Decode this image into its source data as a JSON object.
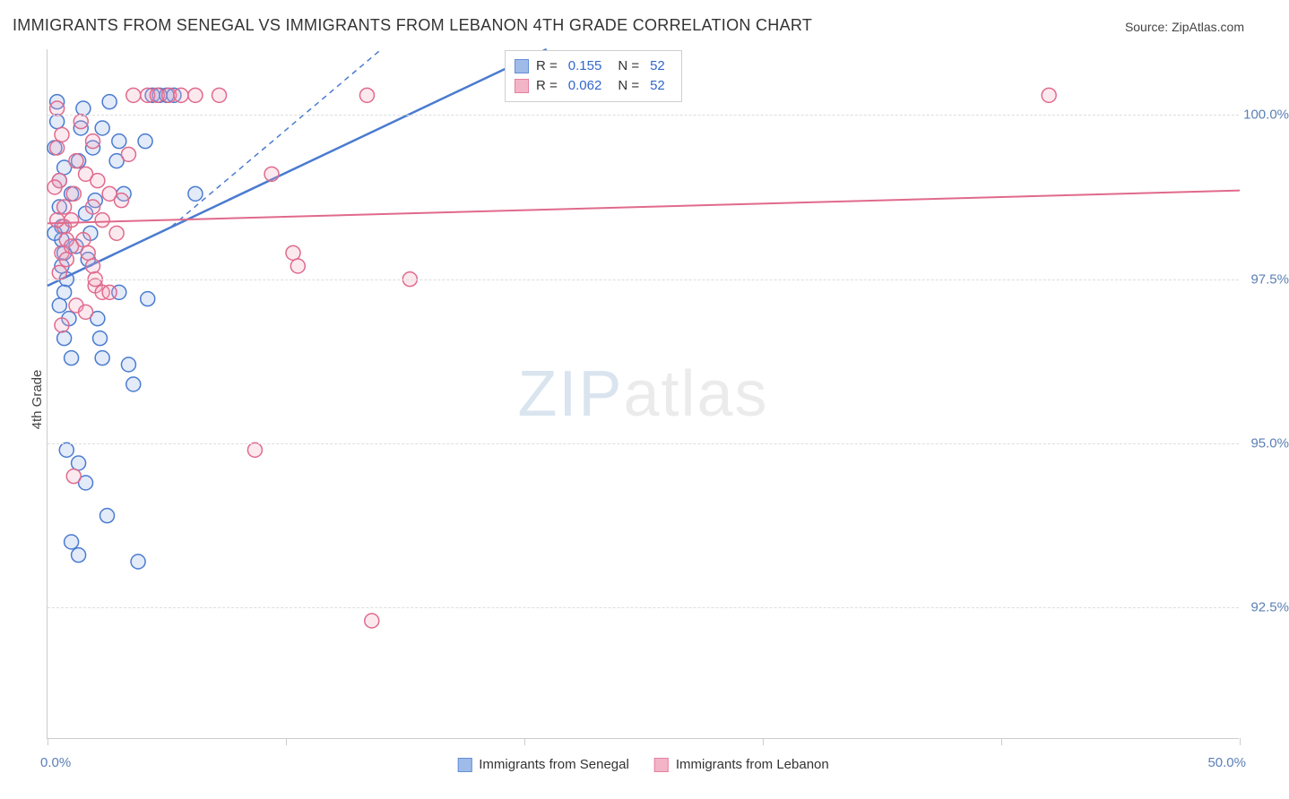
{
  "chart": {
    "type": "scatter",
    "title": "IMMIGRANTS FROM SENEGAL VS IMMIGRANTS FROM LEBANON 4TH GRADE CORRELATION CHART",
    "source_label": "Source: ZipAtlas.com",
    "ylabel": "4th Grade",
    "watermark_primary": "ZIP",
    "watermark_secondary": "atlas",
    "background_color": "#ffffff",
    "grid_color": "#dddddd",
    "axis_color": "#cccccc",
    "text_color": "#333333",
    "value_color": "#3366cc",
    "xlim": [
      0,
      50
    ],
    "ylim": [
      90.5,
      101
    ],
    "ytick_values": [
      92.5,
      95.0,
      97.5,
      100.0
    ],
    "ytick_labels": [
      "92.5%",
      "95.0%",
      "97.5%",
      "100.0%"
    ],
    "xtick_values": [
      0,
      10,
      20,
      30,
      40,
      50
    ],
    "xmin_label": "0.0%",
    "xmax_label": "50.0%",
    "marker_radius": 8,
    "marker_stroke_width": 1.5,
    "marker_fill_opacity": 0.25,
    "series": [
      {
        "id": "senegal",
        "label": "Immigrants from Senegal",
        "color_stroke": "#4a7bd0",
        "color_fill": "#8fb0e6",
        "legend_R": "0.155",
        "legend_N": "52",
        "trend_line": {
          "x1": 0,
          "y1": 97.4,
          "x2": 50,
          "y2": 106,
          "dash": false,
          "width": 2.5
        },
        "trend_line_dashed": {
          "x1": 5.2,
          "y1": 98.3,
          "x2": 14,
          "y2": 101,
          "dash": true,
          "width": 1.5
        },
        "points": [
          [
            0.4,
            100.2
          ],
          [
            0.5,
            99.0
          ],
          [
            0.5,
            98.6
          ],
          [
            0.6,
            98.3
          ],
          [
            0.6,
            98.1
          ],
          [
            0.7,
            97.9
          ],
          [
            0.6,
            97.7
          ],
          [
            0.8,
            97.5
          ],
          [
            0.7,
            97.3
          ],
          [
            0.5,
            97.1
          ],
          [
            0.9,
            96.9
          ],
          [
            0.7,
            96.6
          ],
          [
            1.0,
            96.3
          ],
          [
            1.2,
            98.0
          ],
          [
            1.0,
            98.8
          ],
          [
            1.3,
            99.3
          ],
          [
            1.4,
            99.8
          ],
          [
            1.5,
            100.1
          ],
          [
            1.6,
            98.5
          ],
          [
            1.7,
            97.8
          ],
          [
            1.8,
            98.2
          ],
          [
            1.9,
            99.5
          ],
          [
            2.0,
            98.7
          ],
          [
            2.1,
            96.9
          ],
          [
            2.2,
            96.6
          ],
          [
            2.3,
            96.3
          ],
          [
            2.3,
            99.8
          ],
          [
            2.6,
            100.2
          ],
          [
            2.9,
            99.3
          ],
          [
            3.0,
            99.6
          ],
          [
            3.2,
            98.8
          ],
          [
            3.4,
            96.2
          ],
          [
            3.6,
            95.9
          ],
          [
            0.8,
            94.9
          ],
          [
            1.3,
            94.7
          ],
          [
            1.6,
            94.4
          ],
          [
            2.5,
            93.9
          ],
          [
            1.0,
            93.5
          ],
          [
            1.3,
            93.3
          ],
          [
            3.8,
            93.2
          ],
          [
            4.1,
            99.6
          ],
          [
            4.4,
            100.3
          ],
          [
            4.7,
            100.3
          ],
          [
            5.0,
            100.3
          ],
          [
            5.3,
            100.3
          ],
          [
            6.2,
            98.8
          ],
          [
            4.2,
            97.2
          ],
          [
            3.0,
            97.3
          ],
          [
            0.3,
            99.5
          ],
          [
            0.4,
            99.9
          ],
          [
            0.3,
            98.2
          ],
          [
            0.7,
            99.2
          ]
        ]
      },
      {
        "id": "lebanon",
        "label": "Immigrants from Lebanon",
        "color_stroke": "#e06a8c",
        "color_fill": "#f2a8bf",
        "legend_R": "0.062",
        "legend_N": "52",
        "trend_line": {
          "x1": 0,
          "y1": 98.35,
          "x2": 50,
          "y2": 98.85,
          "dash": false,
          "width": 2
        },
        "points": [
          [
            0.4,
            100.1
          ],
          [
            0.6,
            99.7
          ],
          [
            0.5,
            99.0
          ],
          [
            0.7,
            98.6
          ],
          [
            0.7,
            98.3
          ],
          [
            0.8,
            98.1
          ],
          [
            0.6,
            97.9
          ],
          [
            0.8,
            97.8
          ],
          [
            1.0,
            98.0
          ],
          [
            1.0,
            98.4
          ],
          [
            1.1,
            98.8
          ],
          [
            1.2,
            99.3
          ],
          [
            1.4,
            99.9
          ],
          [
            1.5,
            98.1
          ],
          [
            1.7,
            97.9
          ],
          [
            1.9,
            97.7
          ],
          [
            2.0,
            97.4
          ],
          [
            2.3,
            97.3
          ],
          [
            2.6,
            97.3
          ],
          [
            2.9,
            98.2
          ],
          [
            3.1,
            98.7
          ],
          [
            3.4,
            99.4
          ],
          [
            3.6,
            100.3
          ],
          [
            4.2,
            100.3
          ],
          [
            4.6,
            100.3
          ],
          [
            5.1,
            100.3
          ],
          [
            5.6,
            100.3
          ],
          [
            6.2,
            100.3
          ],
          [
            7.2,
            100.3
          ],
          [
            1.2,
            97.1
          ],
          [
            1.6,
            97.0
          ],
          [
            2.0,
            97.5
          ],
          [
            1.1,
            94.5
          ],
          [
            9.4,
            99.1
          ],
          [
            10.3,
            97.9
          ],
          [
            10.5,
            97.7
          ],
          [
            13.4,
            100.3
          ],
          [
            15.2,
            97.5
          ],
          [
            13.6,
            92.3
          ],
          [
            8.7,
            94.9
          ],
          [
            42.0,
            100.3
          ],
          [
            1.6,
            99.1
          ],
          [
            1.9,
            98.6
          ],
          [
            2.1,
            99.0
          ],
          [
            2.3,
            98.4
          ],
          [
            2.6,
            98.8
          ],
          [
            0.3,
            98.9
          ],
          [
            0.4,
            99.5
          ],
          [
            0.4,
            98.4
          ],
          [
            0.5,
            97.6
          ],
          [
            0.6,
            96.8
          ],
          [
            1.9,
            99.6
          ]
        ]
      }
    ]
  }
}
